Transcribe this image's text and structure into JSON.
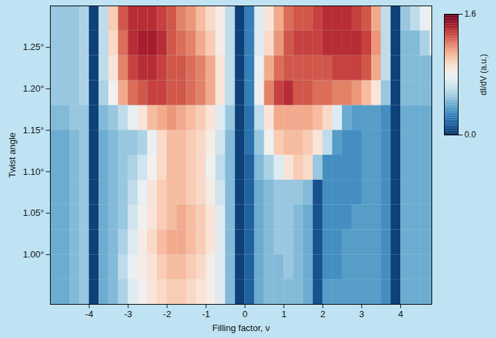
{
  "chart_data": {
    "type": "heatmap",
    "x_label": "Filling factor, ν",
    "y_label": "Twist angle",
    "xlim": [
      -5,
      4.8
    ],
    "ylim": [
      0.94,
      1.3
    ],
    "xticks": [
      -4,
      -3,
      -2,
      -1,
      0,
      1,
      2,
      3,
      4
    ],
    "yticks": [
      {
        "value": 1.0,
        "label": "1.00°"
      },
      {
        "value": 1.05,
        "label": "1.05°"
      },
      {
        "value": 1.1,
        "label": "1.10°"
      },
      {
        "value": 1.15,
        "label": "1.15°"
      },
      {
        "value": 1.2,
        "label": "1.20°"
      },
      {
        "value": 1.25,
        "label": "1.25°"
      }
    ],
    "legend": "right",
    "x_bins": [
      -5,
      -4.75,
      -4.5,
      -4.25,
      -4,
      -3.75,
      -3.5,
      -3.25,
      -3,
      -2.75,
      -2.5,
      -2.25,
      -2,
      -1.75,
      -1.5,
      -1.25,
      -1,
      -0.75,
      -0.5,
      -0.25,
      0,
      0.25,
      0.5,
      0.75,
      1,
      1.25,
      1.5,
      1.75,
      2,
      2.25,
      2.5,
      2.75,
      3,
      3.25,
      3.5,
      3.75,
      4,
      4.25,
      4.5,
      4.75,
      5
    ],
    "y_bins": [
      0.94,
      0.97,
      1.0,
      1.03,
      1.06,
      1.09,
      1.12,
      1.15,
      1.18,
      1.21,
      1.24,
      1.27,
      1.3
    ],
    "cells": [
      [
        0.4,
        0.4,
        0.45,
        0.5,
        0.05,
        0.4,
        0.45,
        0.55,
        0.7,
        0.8,
        0.9,
        0.95,
        1.0,
        1.0,
        0.95,
        0.9,
        0.85,
        0.7,
        0.45,
        0.05,
        0.15,
        0.4,
        0.45,
        0.45,
        0.45,
        0.45,
        0.4,
        0.1,
        0.35,
        0.35,
        0.35,
        0.35,
        0.35,
        0.35,
        0.3,
        0.05,
        0.4,
        0.4,
        0.4,
        0.4
      ],
      [
        0.4,
        0.4,
        0.45,
        0.5,
        0.05,
        0.4,
        0.45,
        0.6,
        0.75,
        0.85,
        0.9,
        1.0,
        1.05,
        1.05,
        1.0,
        0.95,
        0.85,
        0.7,
        0.45,
        0.05,
        0.15,
        0.4,
        0.45,
        0.45,
        0.5,
        0.45,
        0.4,
        0.1,
        0.3,
        0.3,
        0.35,
        0.35,
        0.35,
        0.35,
        0.3,
        0.05,
        0.4,
        0.4,
        0.4,
        0.4
      ],
      [
        0.4,
        0.4,
        0.45,
        0.5,
        0.05,
        0.4,
        0.45,
        0.55,
        0.7,
        0.85,
        0.95,
        1.05,
        1.1,
        1.1,
        1.05,
        1.0,
        0.9,
        0.7,
        0.45,
        0.05,
        0.15,
        0.4,
        0.45,
        0.5,
        0.5,
        0.45,
        0.4,
        0.1,
        0.3,
        0.3,
        0.35,
        0.35,
        0.35,
        0.35,
        0.3,
        0.05,
        0.4,
        0.4,
        0.4,
        0.4
      ],
      [
        0.4,
        0.4,
        0.45,
        0.5,
        0.05,
        0.4,
        0.45,
        0.5,
        0.65,
        0.8,
        0.9,
        1.0,
        1.05,
        1.1,
        1.05,
        1.0,
        0.9,
        0.7,
        0.45,
        0.05,
        0.15,
        0.4,
        0.45,
        0.5,
        0.5,
        0.45,
        0.4,
        0.1,
        0.3,
        0.3,
        0.3,
        0.35,
        0.35,
        0.35,
        0.3,
        0.05,
        0.4,
        0.4,
        0.4,
        0.4
      ],
      [
        0.4,
        0.4,
        0.45,
        0.5,
        0.05,
        0.4,
        0.45,
        0.5,
        0.6,
        0.75,
        0.9,
        1.0,
        1.05,
        1.05,
        1.0,
        0.95,
        0.85,
        0.65,
        0.45,
        0.05,
        0.15,
        0.4,
        0.45,
        0.5,
        0.5,
        0.5,
        0.45,
        0.1,
        0.3,
        0.3,
        0.3,
        0.3,
        0.35,
        0.35,
        0.3,
        0.05,
        0.4,
        0.4,
        0.4,
        0.4
      ],
      [
        0.4,
        0.4,
        0.45,
        0.5,
        0.05,
        0.4,
        0.45,
        0.5,
        0.55,
        0.65,
        0.8,
        0.95,
        1.05,
        1.05,
        1.0,
        0.95,
        0.8,
        0.6,
        0.45,
        0.05,
        0.15,
        0.45,
        0.55,
        0.7,
        0.9,
        1.0,
        0.95,
        0.5,
        0.3,
        0.3,
        0.3,
        0.3,
        0.35,
        0.35,
        0.3,
        0.05,
        0.4,
        0.4,
        0.4,
        0.4
      ],
      [
        0.4,
        0.4,
        0.45,
        0.5,
        0.05,
        0.4,
        0.45,
        0.5,
        0.5,
        0.55,
        0.75,
        0.95,
        1.05,
        1.05,
        1.0,
        0.95,
        0.85,
        0.65,
        0.45,
        0.05,
        0.2,
        0.5,
        0.8,
        1.0,
        1.05,
        1.05,
        1.0,
        0.9,
        0.6,
        0.35,
        0.3,
        0.3,
        0.35,
        0.35,
        0.3,
        0.05,
        0.4,
        0.4,
        0.4,
        0.4
      ],
      [
        0.45,
        0.45,
        0.5,
        0.5,
        0.05,
        0.45,
        0.5,
        0.6,
        0.75,
        0.9,
        1.05,
        1.1,
        1.15,
        1.1,
        1.05,
        1.0,
        0.9,
        0.7,
        0.5,
        0.05,
        0.2,
        0.6,
        0.9,
        1.1,
        1.1,
        1.1,
        1.1,
        1.05,
        0.95,
        0.7,
        0.4,
        0.35,
        0.35,
        0.35,
        0.3,
        0.05,
        0.4,
        0.4,
        0.4,
        0.4
      ],
      [
        0.5,
        0.5,
        0.5,
        0.55,
        0.05,
        0.55,
        0.8,
        1.1,
        1.25,
        1.3,
        1.35,
        1.35,
        1.3,
        1.3,
        1.25,
        1.2,
        1.1,
        0.9,
        0.6,
        0.05,
        0.25,
        0.8,
        1.2,
        1.35,
        1.4,
        1.3,
        1.3,
        1.25,
        1.25,
        1.2,
        1.2,
        1.15,
        1.05,
        0.9,
        0.5,
        0.05,
        0.45,
        0.45,
        0.45,
        0.45
      ],
      [
        0.5,
        0.5,
        0.5,
        0.55,
        0.05,
        0.6,
        0.9,
        1.2,
        1.35,
        1.4,
        1.4,
        1.35,
        1.3,
        1.3,
        1.25,
        1.2,
        1.1,
        0.9,
        0.6,
        0.05,
        0.25,
        0.75,
        1.1,
        1.25,
        1.3,
        1.3,
        1.3,
        1.3,
        1.3,
        1.35,
        1.35,
        1.35,
        1.3,
        1.1,
        0.6,
        0.05,
        0.45,
        0.45,
        0.45,
        0.45
      ],
      [
        0.5,
        0.5,
        0.5,
        0.55,
        0.05,
        0.6,
        0.95,
        1.25,
        1.4,
        1.45,
        1.45,
        1.4,
        1.3,
        1.25,
        1.2,
        1.1,
        1.0,
        0.85,
        0.6,
        0.05,
        0.25,
        0.7,
        0.95,
        1.15,
        1.3,
        1.35,
        1.35,
        1.35,
        1.4,
        1.4,
        1.4,
        1.4,
        1.35,
        1.15,
        0.6,
        0.05,
        0.45,
        0.45,
        0.55,
        0.7
      ],
      [
        0.5,
        0.5,
        0.5,
        0.55,
        0.05,
        0.6,
        1.0,
        1.3,
        1.4,
        1.4,
        1.4,
        1.35,
        1.3,
        1.2,
        1.15,
        1.05,
        0.95,
        0.85,
        0.6,
        0.05,
        0.25,
        0.7,
        0.9,
        1.1,
        1.25,
        1.3,
        1.3,
        1.35,
        1.4,
        1.4,
        1.4,
        1.35,
        1.3,
        1.1,
        0.6,
        0.05,
        0.5,
        0.6,
        0.75,
        0.8
      ]
    ],
    "colorbar": {
      "label": "dI/dV (a.u.)",
      "range": [
        0,
        1.6
      ],
      "ticks": [
        {
          "value": 0,
          "label": "0.0"
        },
        {
          "value": 1.6,
          "label": "1.6"
        }
      ]
    }
  }
}
